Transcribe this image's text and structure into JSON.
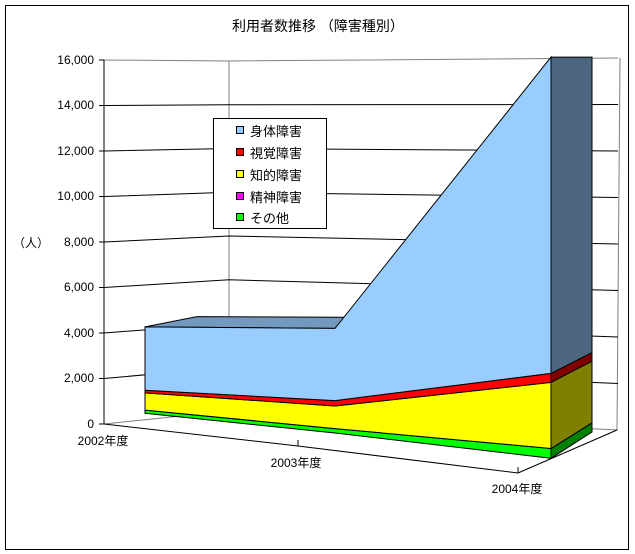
{
  "chart_data": {
    "type": "area",
    "subtype": "3d-stacked-area",
    "title": "利用者数推移 （障害種別）",
    "xlabel": "",
    "ylabel": "（人）",
    "categories": [
      "2002年度",
      "2003年度",
      "2004年度"
    ],
    "ylim": [
      0,
      16000
    ],
    "yticks": [
      0,
      2000,
      4000,
      6000,
      8000,
      10000,
      12000,
      14000,
      16000
    ],
    "ytick_labels": [
      "0",
      "2,000",
      "4,000",
      "6,000",
      "8,000",
      "10,000",
      "12,000",
      "14,000",
      "16,000"
    ],
    "grid": true,
    "legend_position": "inside-upper-left",
    "series": [
      {
        "name": "身体障害",
        "color": "#99CCFF",
        "values": [
          2950,
          3100,
          12550
        ]
      },
      {
        "name": "視覚障害",
        "color": "#FF0000",
        "values": [
          120,
          230,
          360
        ]
      },
      {
        "name": "知的障害",
        "color": "#FFFF00",
        "values": [
          800,
          970,
          2620
        ]
      },
      {
        "name": "精神障害",
        "color": "#FF00FF",
        "values": [
          0,
          0,
          0
        ]
      },
      {
        "name": "その他",
        "color": "#00FF00",
        "values": [
          150,
          190,
          390
        ]
      }
    ]
  }
}
